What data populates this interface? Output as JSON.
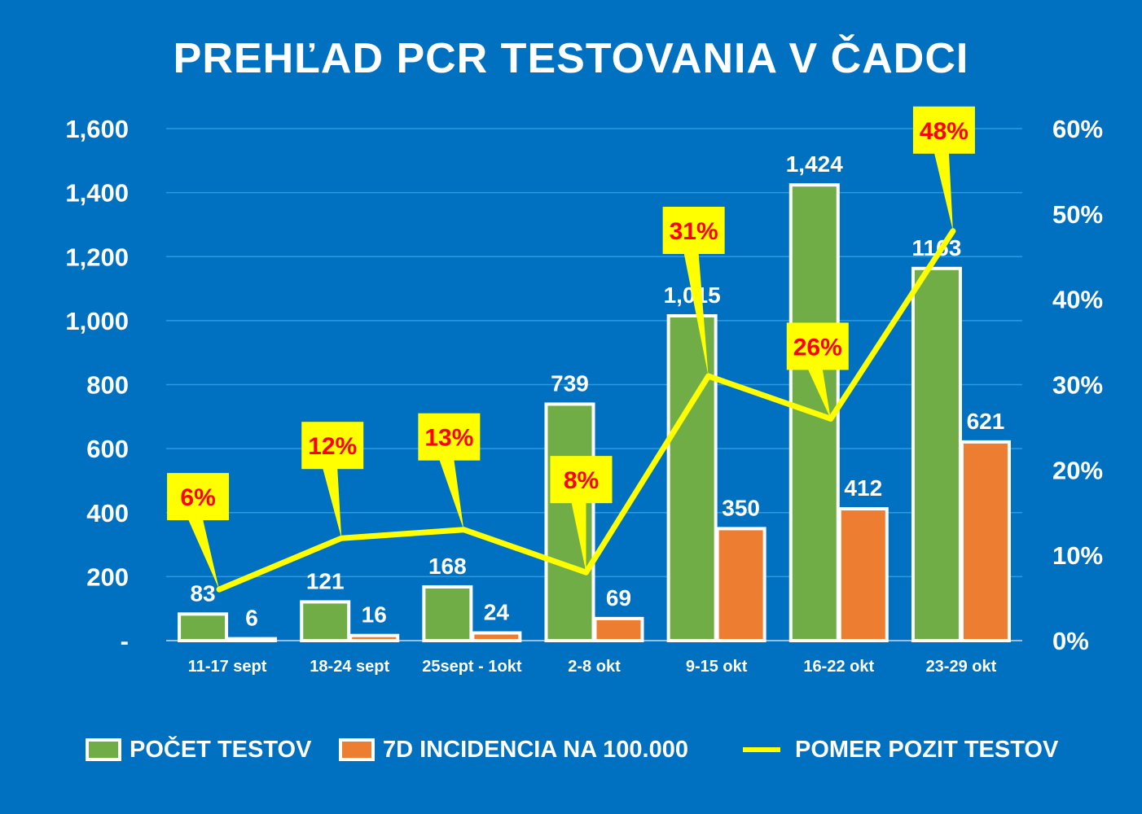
{
  "chart_data": {
    "type": "bar",
    "title": "PREHĽAD PCR TESTOVANIA V ČADCI",
    "categories": [
      "11-17 sept",
      "18-24 sept",
      "25sept - 1okt",
      "2-8 okt",
      "9-15 okt",
      "16-22 okt",
      "23-29 okt"
    ],
    "series": [
      {
        "name": "POČET TESTOV",
        "type": "bar",
        "axis": "left",
        "color": "#70AD47",
        "values": [
          83,
          121,
          168,
          739,
          1015,
          1424,
          1163
        ],
        "labels": [
          "83",
          "121",
          "168",
          "739",
          "1,015",
          "1,424",
          "1163"
        ]
      },
      {
        "name": "7D INCIDENCIA NA 100.000",
        "type": "bar",
        "axis": "left",
        "color": "#ED7D31",
        "values": [
          6,
          16,
          24,
          69,
          350,
          412,
          621
        ],
        "labels": [
          "6",
          "16",
          "24",
          "69",
          "350",
          "412",
          "621"
        ]
      },
      {
        "name": "POMER POZIT TESTOV",
        "type": "line",
        "axis": "right",
        "color": "#FFFF00",
        "values": [
          6,
          12,
          13,
          8,
          31,
          26,
          48
        ],
        "labels": [
          "6%",
          "12%",
          "13%",
          "8%",
          "31%",
          "26%",
          "48%"
        ]
      }
    ],
    "y_left": {
      "range": [
        0,
        1600
      ],
      "ticks": [
        0,
        200,
        400,
        600,
        800,
        1000,
        1200,
        1400,
        1600
      ],
      "tick_labels": [
        "-",
        "200",
        "400",
        "600",
        "800",
        "1,000",
        "1,200",
        "1,400",
        "1,600"
      ]
    },
    "y_right": {
      "range": [
        0,
        60
      ],
      "unit": "%",
      "ticks": [
        0,
        10,
        20,
        30,
        40,
        50,
        60
      ],
      "tick_labels": [
        "0%",
        "10%",
        "20%",
        "30%",
        "40%",
        "50%",
        "60%"
      ]
    },
    "grid": true,
    "legend_position": "bottom",
    "label_box_color": "#FFFF00",
    "label_text_color": "#FF0000",
    "background": "#0070C0"
  }
}
